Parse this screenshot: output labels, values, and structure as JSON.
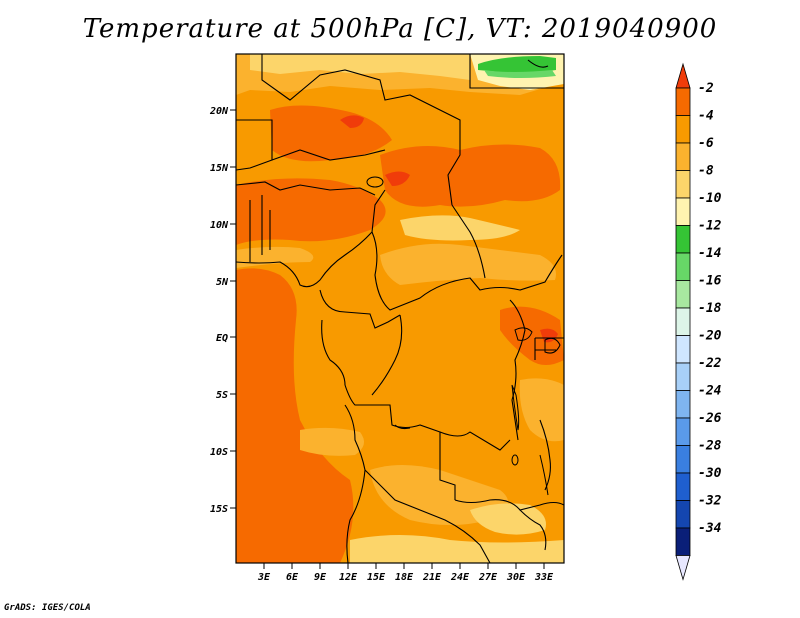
{
  "title": "Temperature at 500hPa [C], VT: 2019040900",
  "credit": "GrADS: IGES/COLA",
  "map": {
    "region": "Central Africa",
    "lat_ticks": [
      "20N",
      "15N",
      "10N",
      "5N",
      "EQ",
      "5S",
      "10S",
      "15S"
    ],
    "lon_ticks": [
      "3E",
      "6E",
      "9E",
      "12E",
      "15E",
      "18E",
      "21E",
      "24E",
      "27E",
      "30E",
      "33E"
    ]
  },
  "colorbar": {
    "labels": [
      "-2",
      "-4",
      "-6",
      "-8",
      "-10",
      "-12",
      "-14",
      "-16",
      "-18",
      "-20",
      "-22",
      "-24",
      "-26",
      "-28",
      "-30",
      "-32",
      "-34"
    ],
    "colors": [
      "#f03c0a",
      "#f66a00",
      "#f89a00",
      "#fbb22e",
      "#fcd56a",
      "#fff3b0",
      "#35c435",
      "#67d767",
      "#a8e8a0",
      "#ddf5e8",
      "#cfe6ff",
      "#a8d0f8",
      "#7fb5f0",
      "#5a9aea",
      "#3a7fe0",
      "#1f5fcf",
      "#1446b0",
      "#0a1f78",
      "#e8e8ff"
    ]
  }
}
